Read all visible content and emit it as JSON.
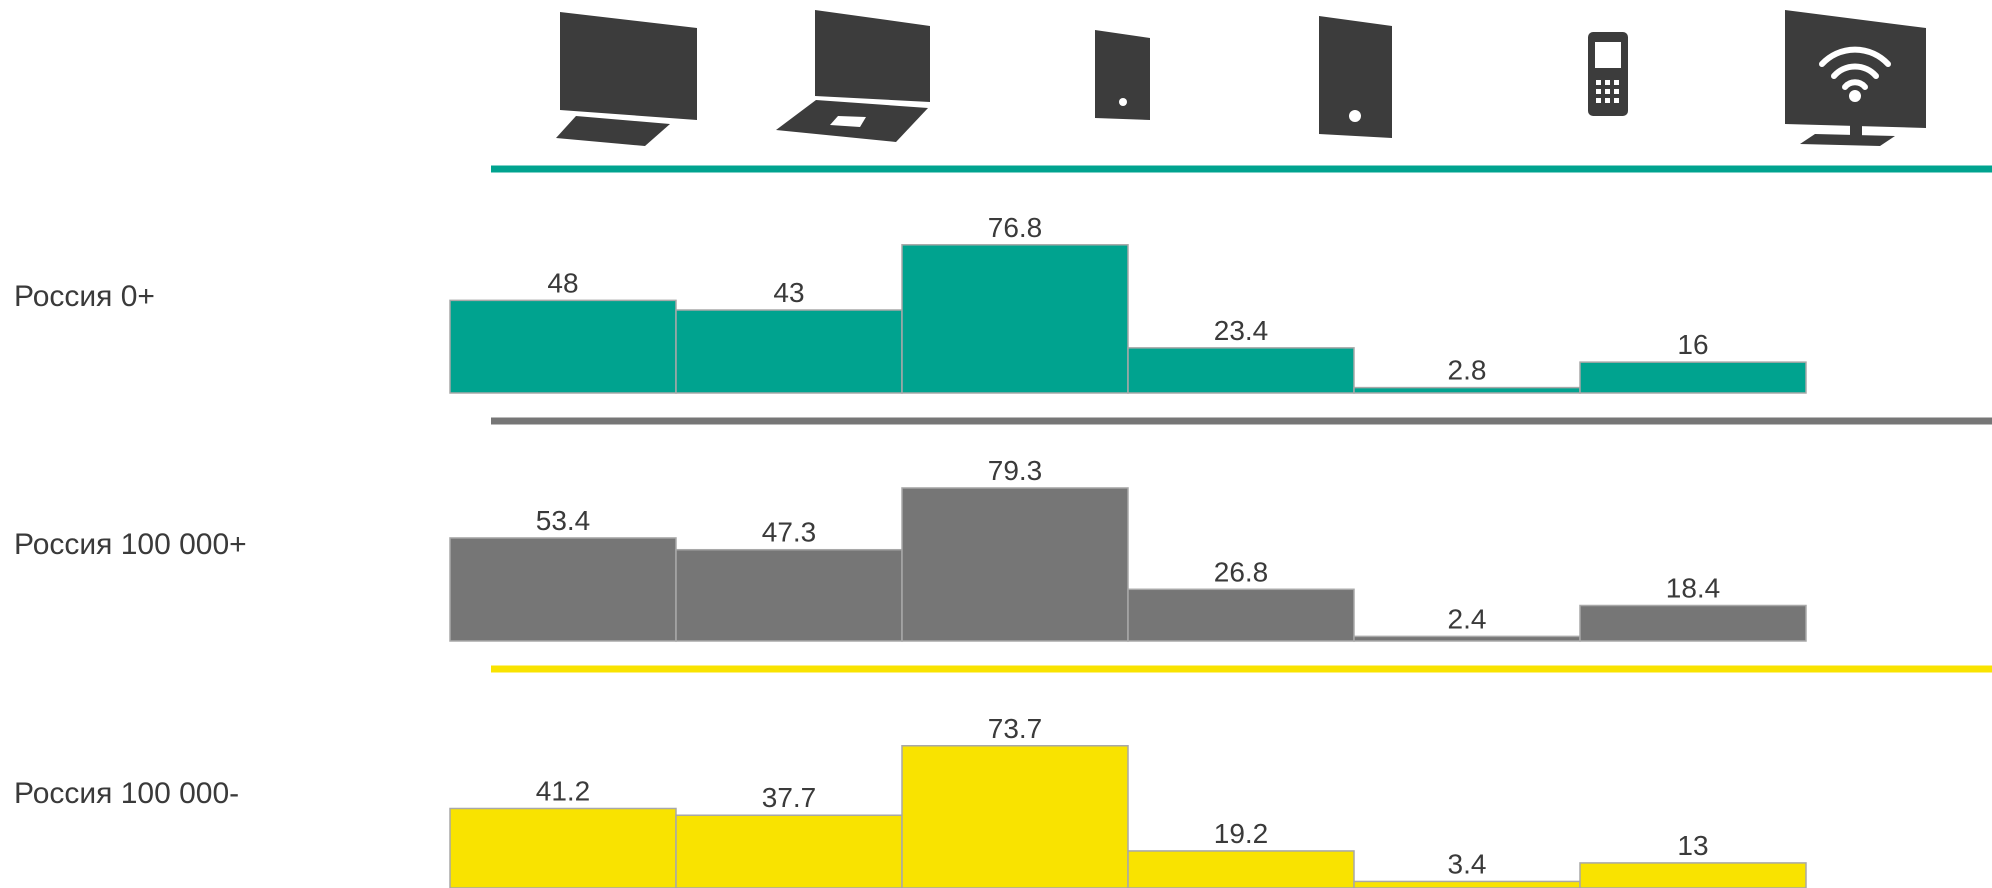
{
  "colors": {
    "teal": "#00a38f",
    "gray": "#767676",
    "yellow": "#f9e300",
    "icon": "#3c3c3c",
    "text": "#3a3a3a"
  },
  "chart_data": {
    "type": "bar",
    "categories": [
      "desktop-icon",
      "laptop-icon",
      "small-tablet-icon",
      "tablet-icon",
      "mobile-phone-icon",
      "smart-tv-icon"
    ],
    "series": [
      {
        "name": "Россия 0+",
        "color": "#00a38f",
        "values": [
          48,
          43,
          76.8,
          23.4,
          2.8,
          16
        ]
      },
      {
        "name": "Россия 100 000+",
        "color": "#767676",
        "values": [
          53.4,
          47.3,
          79.3,
          26.8,
          2.4,
          18.4
        ]
      },
      {
        "name": "Россия 100 000-",
        "color": "#f9e300",
        "values": [
          41.2,
          37.7,
          73.7,
          19.2,
          3.4,
          13
        ]
      }
    ]
  }
}
